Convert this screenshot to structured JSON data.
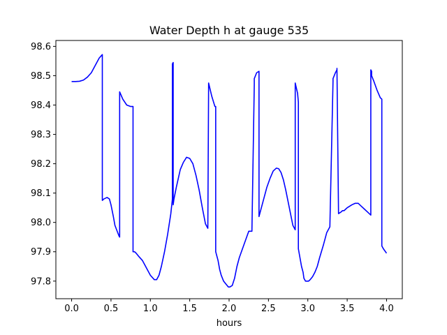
{
  "chart_data": {
    "type": "line",
    "title": "Water Depth h at gauge 535",
    "xlabel": "hours",
    "ylabel": "",
    "xlim": [
      -0.2,
      4.2
    ],
    "ylim": [
      97.74,
      98.62
    ],
    "xticks": [
      0.0,
      0.5,
      1.0,
      1.5,
      2.0,
      2.5,
      3.0,
      3.5,
      4.0
    ],
    "xtick_labels": [
      "0.0",
      "0.5",
      "1.0",
      "1.5",
      "2.0",
      "2.5",
      "3.0",
      "3.5",
      "4.0"
    ],
    "yticks": [
      97.8,
      97.9,
      98.0,
      98.1,
      98.2,
      98.3,
      98.4,
      98.5,
      98.6
    ],
    "ytick_labels": [
      "97.8",
      "97.9",
      "98.0",
      "98.1",
      "98.2",
      "98.3",
      "98.4",
      "98.5",
      "98.6"
    ],
    "grid": false,
    "legend": "none",
    "line_color": "#0000ff",
    "series": [
      {
        "x": [
          0.0,
          0.05,
          0.1,
          0.15,
          0.2,
          0.25,
          0.3,
          0.35,
          0.39,
          0.39,
          0.41,
          0.45,
          0.48,
          0.5,
          0.53,
          0.55,
          0.6,
          0.61,
          0.61,
          0.65,
          0.7,
          0.75,
          0.78,
          0.78,
          0.79,
          0.8,
          0.82,
          0.85,
          0.9,
          0.95,
          1.0,
          1.05,
          1.08,
          1.11,
          1.14,
          1.18,
          1.22,
          1.26,
          1.28,
          1.28,
          1.29,
          1.29,
          1.3,
          1.33,
          1.38,
          1.42,
          1.46,
          1.5,
          1.54,
          1.58,
          1.62,
          1.66,
          1.7,
          1.73,
          1.74,
          1.74,
          1.78,
          1.82,
          1.83,
          1.83,
          1.86,
          1.88,
          1.9,
          1.93,
          1.96,
          1.99,
          2.01,
          2.04,
          2.07,
          2.1,
          2.13,
          2.17,
          2.21,
          2.25,
          2.29,
          2.32,
          2.32,
          2.35,
          2.38,
          2.38,
          2.39,
          2.42,
          2.45,
          2.48,
          2.52,
          2.56,
          2.6,
          2.63,
          2.66,
          2.69,
          2.72,
          2.75,
          2.78,
          2.81,
          2.84,
          2.84,
          2.87,
          2.88,
          2.88,
          2.9,
          2.92,
          2.94,
          2.95,
          2.97,
          2.99,
          3.01,
          3.03,
          3.06,
          3.09,
          3.12,
          3.15,
          3.2,
          3.24,
          3.28,
          3.32,
          3.32,
          3.35,
          3.37,
          3.37,
          3.39,
          3.42,
          3.44,
          3.46,
          3.48,
          3.5,
          3.53,
          3.56,
          3.6,
          3.64,
          3.68,
          3.72,
          3.76,
          3.8,
          3.8,
          3.81,
          3.81,
          3.84,
          3.88,
          3.92,
          3.94,
          3.94,
          3.96,
          4.0
        ],
        "y": [
          98.48,
          98.48,
          98.481,
          98.485,
          98.495,
          98.51,
          98.535,
          98.56,
          98.572,
          98.075,
          98.08,
          98.085,
          98.08,
          98.06,
          98.02,
          97.99,
          97.955,
          97.95,
          98.445,
          98.42,
          98.4,
          98.395,
          98.395,
          97.9,
          97.9,
          97.9,
          97.895,
          97.885,
          97.87,
          97.845,
          97.82,
          97.805,
          97.805,
          97.82,
          97.85,
          97.9,
          97.96,
          98.03,
          98.08,
          98.54,
          98.545,
          98.06,
          98.08,
          98.12,
          98.18,
          98.205,
          98.222,
          98.218,
          98.2,
          98.16,
          98.11,
          98.05,
          97.995,
          97.98,
          98.475,
          98.475,
          98.43,
          98.395,
          98.395,
          97.9,
          97.87,
          97.84,
          97.82,
          97.8,
          97.79,
          97.78,
          97.78,
          97.785,
          97.81,
          97.85,
          97.88,
          97.91,
          97.94,
          97.97,
          97.97,
          98.47,
          98.49,
          98.51,
          98.515,
          98.02,
          98.03,
          98.06,
          98.09,
          98.12,
          98.15,
          98.175,
          98.185,
          98.183,
          98.17,
          98.145,
          98.11,
          98.07,
          98.03,
          97.99,
          97.975,
          98.475,
          98.44,
          98.41,
          97.91,
          97.88,
          97.85,
          97.83,
          97.81,
          97.8,
          97.8,
          97.8,
          97.805,
          97.815,
          97.83,
          97.85,
          97.88,
          97.925,
          97.965,
          97.985,
          98.48,
          98.49,
          98.51,
          98.52,
          98.525,
          98.03,
          98.035,
          98.04,
          98.04,
          98.045,
          98.05,
          98.055,
          98.06,
          98.065,
          98.065,
          98.055,
          98.045,
          98.035,
          98.025,
          98.52,
          98.515,
          98.5,
          98.48,
          98.45,
          98.425,
          98.42,
          97.92,
          97.91,
          97.895
        ]
      }
    ]
  }
}
